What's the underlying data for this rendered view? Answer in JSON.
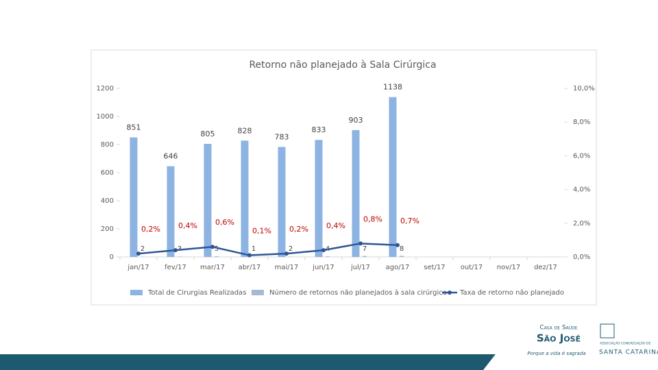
{
  "chart_data": {
    "type": "bar",
    "title": "Retorno não planejado à Sala Cirúrgica",
    "categories": [
      "jan/17",
      "fev/17",
      "mar/17",
      "abr/17",
      "mai/17",
      "jun/17",
      "jul/17",
      "ago/17",
      "set/17",
      "out/17",
      "nov/17",
      "dez/17"
    ],
    "series": [
      {
        "name": "Total de Cirurgias Realizadas",
        "color": "#8db3e2",
        "type": "bar",
        "values": [
          851,
          646,
          805,
          828,
          783,
          833,
          903,
          1138,
          null,
          null,
          null,
          null
        ]
      },
      {
        "name": "Número de retornos não planejados à sala cirúrgica",
        "color": "#a6b9d4",
        "type": "bar",
        "values": [
          2,
          3,
          5,
          1,
          2,
          4,
          7,
          8,
          null,
          null,
          null,
          null
        ]
      },
      {
        "name": "Taxa de retorno não planejado",
        "color": "#2e5597",
        "type": "line",
        "axis": "y2",
        "values": [
          0.2,
          0.4,
          0.6,
          0.1,
          0.2,
          0.4,
          0.8,
          0.7,
          null,
          null,
          null,
          null
        ],
        "value_labels": [
          "0,2%",
          "0,4%",
          "0,6%",
          "0,1%",
          "0,2%",
          "0,4%",
          "0,8%",
          "0,7%",
          null,
          null,
          null,
          null
        ]
      }
    ],
    "ylim": [
      0,
      1200
    ],
    "yticks": [
      0,
      200,
      400,
      600,
      800,
      1000,
      1200
    ],
    "y2lim": [
      0,
      10
    ],
    "y2ticks": [
      {
        "value": 0,
        "label": "0,0%"
      },
      {
        "value": 2,
        "label": "2,0%"
      },
      {
        "value": 4,
        "label": "4,0%"
      },
      {
        "value": 6,
        "label": "6,0%"
      },
      {
        "value": 8,
        "label": "8,0%"
      },
      {
        "value": 10,
        "label": "10,0%"
      }
    ],
    "grid": false,
    "legend": "bottom"
  },
  "footer": {
    "brand_top": "Casa de Saúde",
    "brand_main": "São José",
    "tagline": "Porque a vida é sagrada",
    "assoc_small": "Associação Congregação de",
    "assoc_main": "Santa Catarina"
  }
}
